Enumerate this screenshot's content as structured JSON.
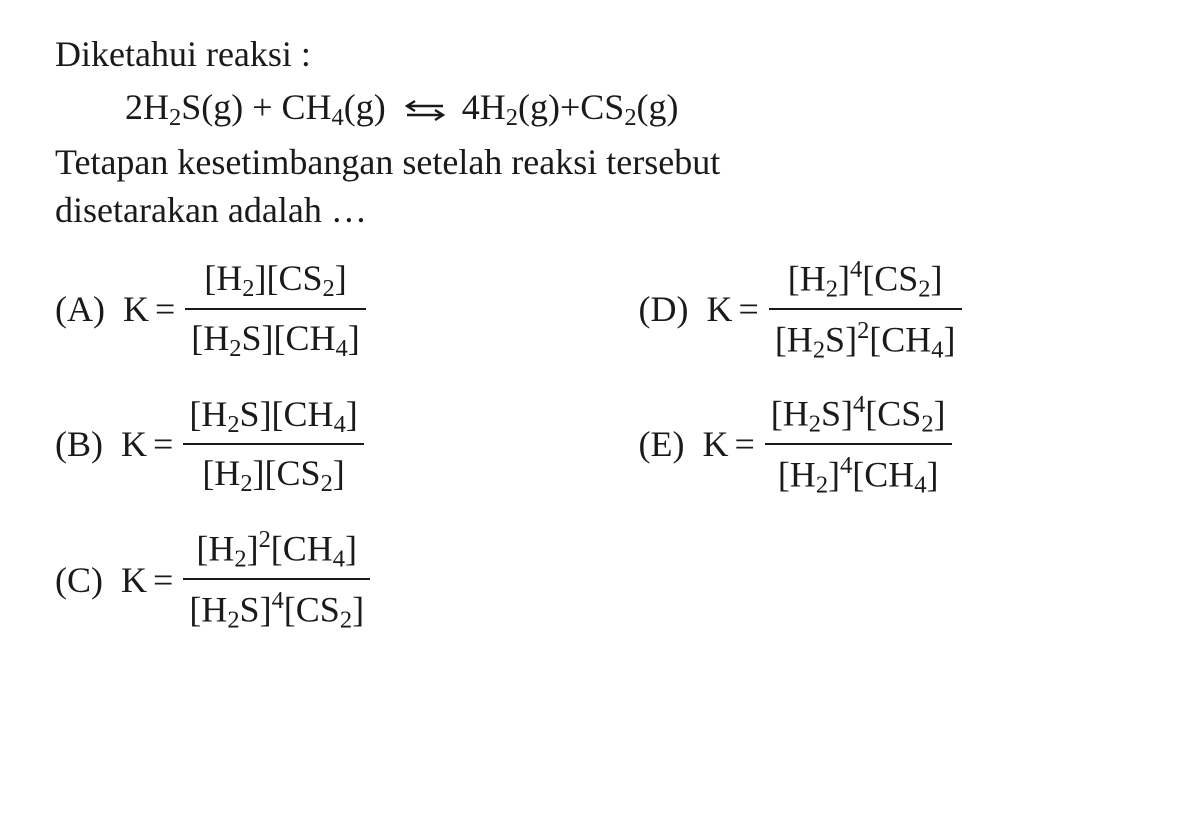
{
  "intro": "Diketahui reaksi :",
  "reaction": {
    "lhs": "2H<sub>2</sub>S(g) + CH<sub>4</sub>(g)",
    "rhs": "4H<sub>2</sub>(g)+CS<sub>2</sub>(g)"
  },
  "question_line1": "Tetapan kesetimbangan setelah reaksi tersebut",
  "question_line2": "disetarakan adalah …",
  "options": {
    "A": {
      "label": "(A)",
      "lhs": "K",
      "num": "[H<sub>2</sub>][CS<sub>2</sub>]",
      "den": "[H<sub>2</sub>S][CH<sub>4</sub>]"
    },
    "B": {
      "label": "(B)",
      "lhs": "K",
      "num": "[H<sub>2</sub>S][CH<sub>4</sub>]",
      "den": "[H<sub>2</sub>][CS<sub>2</sub>]"
    },
    "C": {
      "label": "(C)",
      "lhs": "K",
      "num": "[H<sub>2</sub>]<sup>2</sup>[CH<sub>4</sub>]",
      "den": "[H<sub>2</sub>S]<sup>4</sup>[CS<sub>2</sub>]"
    },
    "D": {
      "label": "(D)",
      "lhs": "K",
      "num": "[H<sub>2</sub>]<sup>4</sup>[CS<sub>2</sub>]",
      "den": "[H<sub>2</sub>S]<sup>2</sup>[CH<sub>4</sub>]"
    },
    "E": {
      "label": "(E)",
      "lhs": "K",
      "num": "[H<sub>2</sub>S]<sup>4</sup>[CS<sub>2</sub>]",
      "den": "[H<sub>2</sub>]<sup>4</sup>[CH<sub>4</sub>]"
    }
  },
  "colors": {
    "text": "#1a1a1a",
    "background": "#ffffff",
    "rule": "#1a1a1a"
  },
  "typography": {
    "font_family": "Times New Roman",
    "base_fontsize_pt": 27,
    "sub_scale": 0.68,
    "sup_scale": 0.68
  }
}
